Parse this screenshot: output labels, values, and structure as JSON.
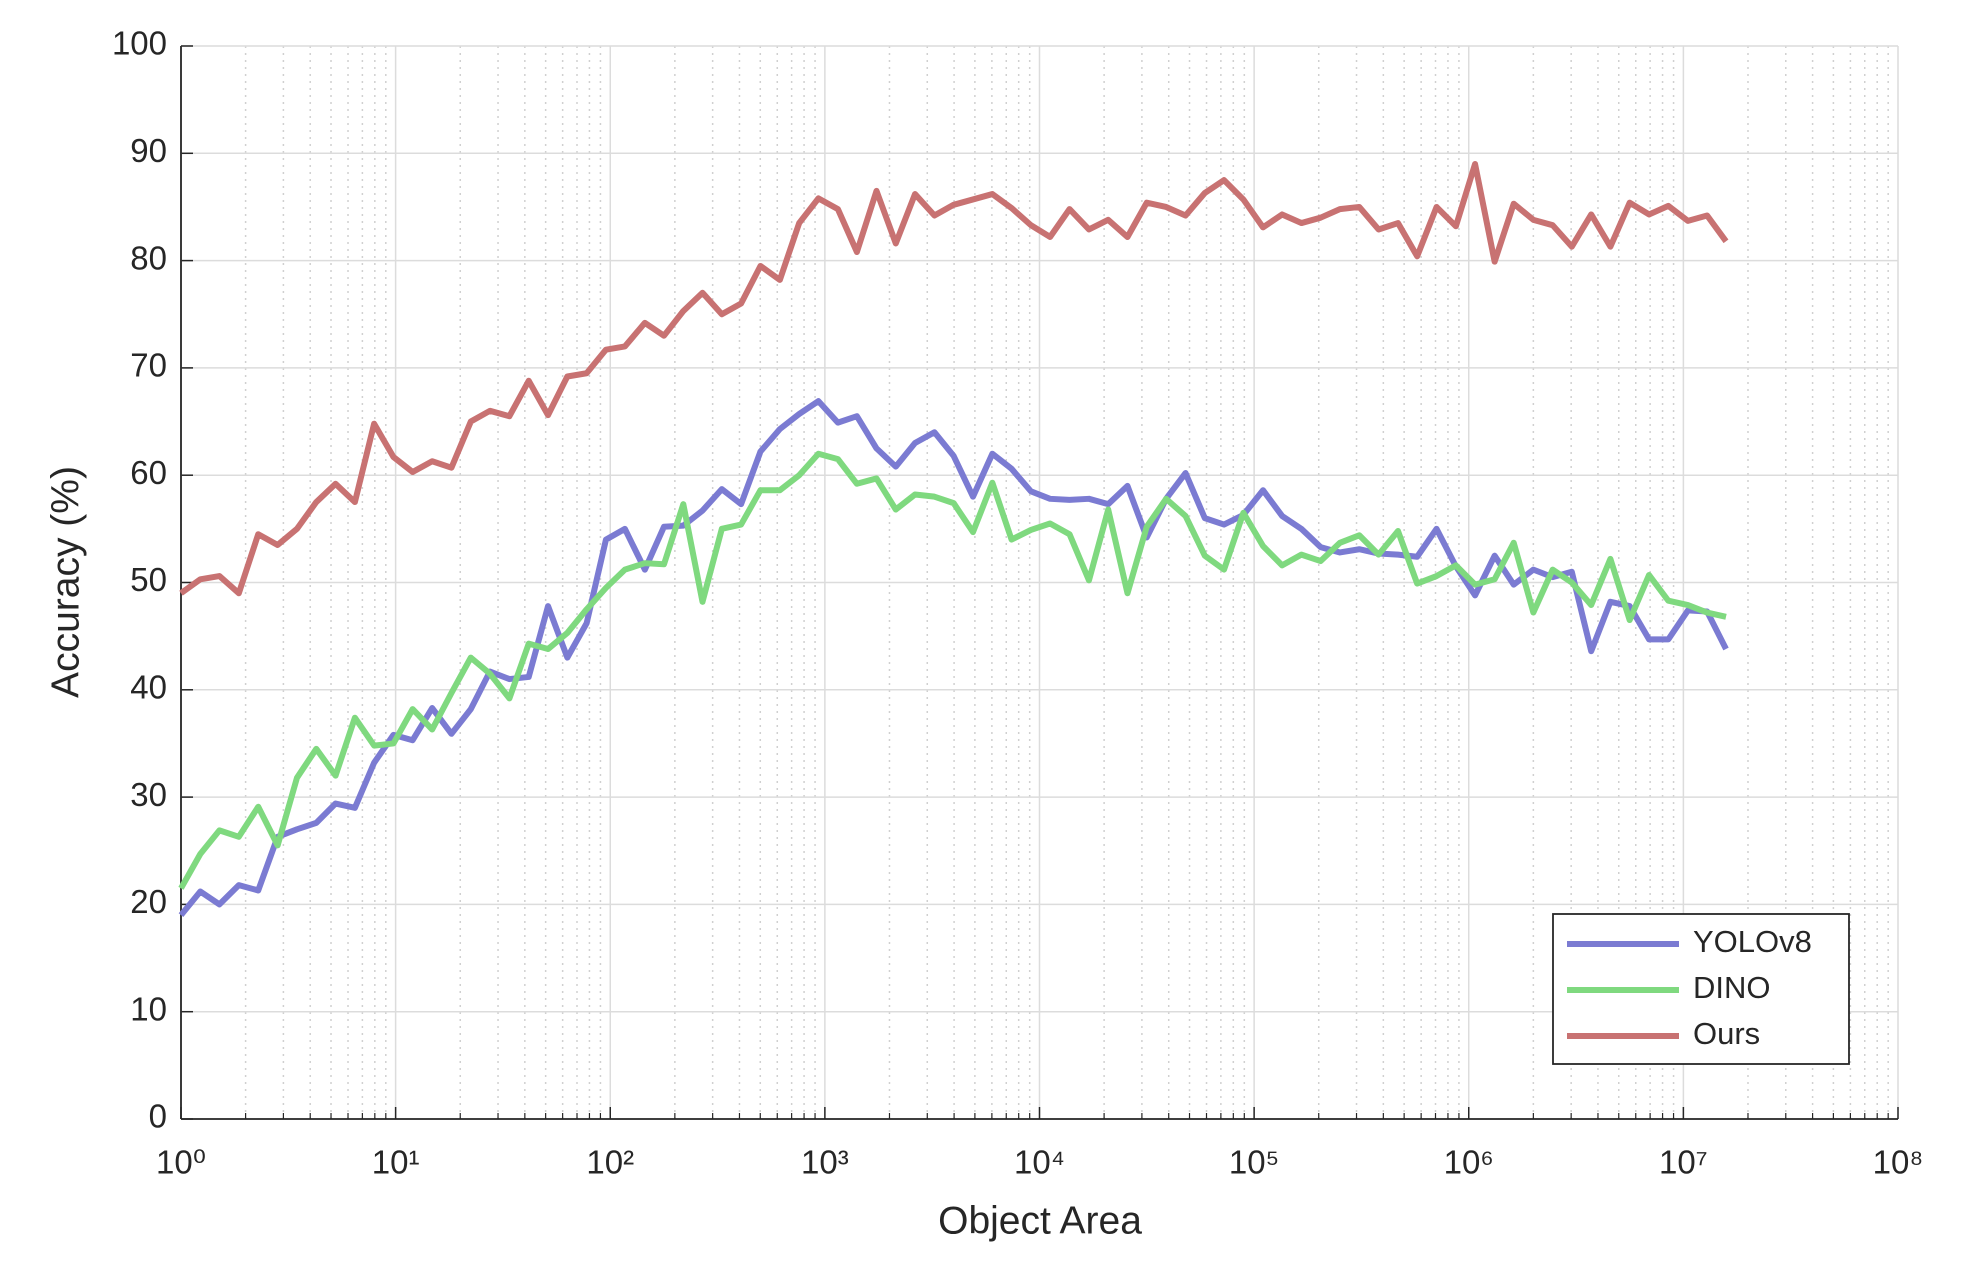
{
  "chart_data": {
    "type": "line",
    "xlabel": "Object Area",
    "ylabel": "Accuracy (%)",
    "xscale": "log",
    "grid": true,
    "minor_grid": true,
    "legend": "southeast",
    "xlim": [
      1,
      100000000
    ],
    "xticks": [
      {
        "value": 1,
        "label": "10⁰"
      },
      {
        "value": 10,
        "label": "10¹"
      },
      {
        "value": 100,
        "label": "10²"
      },
      {
        "value": 1000,
        "label": "10³"
      },
      {
        "value": 10000,
        "label": "10⁴"
      },
      {
        "value": 100000,
        "label": "10⁵"
      },
      {
        "value": 1000000,
        "label": "10⁶"
      },
      {
        "value": 10000000,
        "label": "10⁷"
      },
      {
        "value": 100000000,
        "label": "10⁸"
      }
    ],
    "ylim": [
      0,
      100
    ],
    "yticks": [
      0,
      10,
      20,
      30,
      40,
      50,
      60,
      70,
      80,
      90,
      100
    ],
    "x": [
      1,
      1.23,
      1.51,
      1.86,
      2.29,
      2.82,
      3.47,
      4.27,
      5.25,
      6.46,
      7.94,
      9.77,
      12.0,
      14.8,
      18.2,
      22.4,
      27.5,
      33.9,
      41.7,
      51.3,
      63.1,
      77.6,
      95.5,
      117,
      145,
      178,
      219,
      269,
      331,
      407,
      501,
      617,
      759,
      933,
      1150,
      1410,
      1740,
      2140,
      2630,
      3240,
      3980,
      4900,
      6030,
      7410,
      9120,
      11200,
      13800,
      17000,
      20900,
      25700,
      31600,
      38900,
      47900,
      58900,
      72400,
      89100,
      110000,
      135000,
      166000,
      204000,
      251000,
      309000,
      380000,
      468000,
      575000,
      708000,
      871000,
      1070000,
      1320000,
      1620000,
      2000000,
      2460000,
      3020000,
      3720000,
      4570000,
      5620000,
      6920000,
      8510000,
      10500000,
      12900000,
      15800000
    ],
    "series": [
      {
        "name": "YOLOv8",
        "color": "#7b7bd2",
        "values": [
          19,
          21.2,
          20,
          21.8,
          21.3,
          26.3,
          27,
          27.6,
          29.4,
          29,
          33.2,
          35.8,
          35.3,
          38.3,
          35.9,
          38.2,
          41.7,
          41,
          41.2,
          47.8,
          43,
          46.2,
          54,
          55,
          51.2,
          55.2,
          55.3,
          56.7,
          58.7,
          57.3,
          62.2,
          64.3,
          65.7,
          66.9,
          64.9,
          65.5,
          62.5,
          60.8,
          63,
          64,
          61.8,
          58,
          62,
          60.6,
          58.5,
          57.8,
          57.7,
          57.8,
          57.3,
          59,
          54.2,
          57.8,
          60.2,
          56,
          55.4,
          56.3,
          58.6,
          56.2,
          55,
          53.3,
          52.8,
          53.1,
          52.7,
          52.6,
          52.4,
          55,
          51.5,
          48.8,
          52.5,
          49.8,
          51.2,
          50.5,
          51,
          43.6,
          48.2,
          47.8,
          44.7,
          44.7,
          47.4,
          47.3,
          43.8
        ]
      },
      {
        "name": "DINO",
        "color": "#7fd97f",
        "values": [
          21.5,
          24.7,
          26.9,
          26.3,
          29.1,
          25.5,
          31.8,
          34.5,
          32,
          37.4,
          34.8,
          35,
          38.2,
          36.3,
          39.7,
          43,
          41.5,
          39.2,
          44.3,
          43.8,
          45.3,
          47.5,
          49.5,
          51.2,
          51.8,
          51.7,
          57.3,
          48.2,
          55,
          55.4,
          58.6,
          58.6,
          60,
          62,
          61.5,
          59.2,
          59.7,
          56.8,
          58.2,
          58,
          57.4,
          54.7,
          59.3,
          54,
          54.9,
          55.5,
          54.5,
          50.2,
          56.8,
          49,
          55.2,
          57.8,
          56.2,
          52.5,
          51.2,
          56.5,
          53.4,
          51.6,
          52.6,
          52,
          53.7,
          54.4,
          52.6,
          54.8,
          49.9,
          50.6,
          51.6,
          49.8,
          50.3,
          53.7,
          47.2,
          51.2,
          50,
          47.9,
          52.2,
          46.5,
          50.7,
          48.3,
          47.9,
          47.2,
          46.8
        ]
      },
      {
        "name": "Ours",
        "color": "#c87272",
        "values": [
          49,
          50.3,
          50.6,
          49,
          54.5,
          53.5,
          55,
          57.5,
          59.2,
          57.5,
          64.8,
          61.7,
          60.3,
          61.3,
          60.7,
          65,
          66,
          65.5,
          68.8,
          65.6,
          69.2,
          69.5,
          71.7,
          72,
          74.2,
          73,
          75.3,
          77,
          75,
          76,
          79.5,
          78.2,
          83.5,
          85.8,
          84.8,
          80.8,
          86.5,
          81.6,
          86.2,
          84.2,
          85.2,
          85.7,
          86.2,
          84.9,
          83.3,
          82.2,
          84.8,
          82.9,
          83.8,
          82.2,
          85.4,
          85,
          84.2,
          86.3,
          87.5,
          85.7,
          83.1,
          84.3,
          83.5,
          84,
          84.8,
          85,
          82.9,
          83.5,
          80.4,
          85,
          83.2,
          89,
          79.9,
          85.3,
          83.8,
          83.3,
          81.3,
          84.3,
          81.3,
          85.4,
          84.3,
          85.1,
          83.7,
          84.2,
          81.8
        ]
      }
    ]
  }
}
